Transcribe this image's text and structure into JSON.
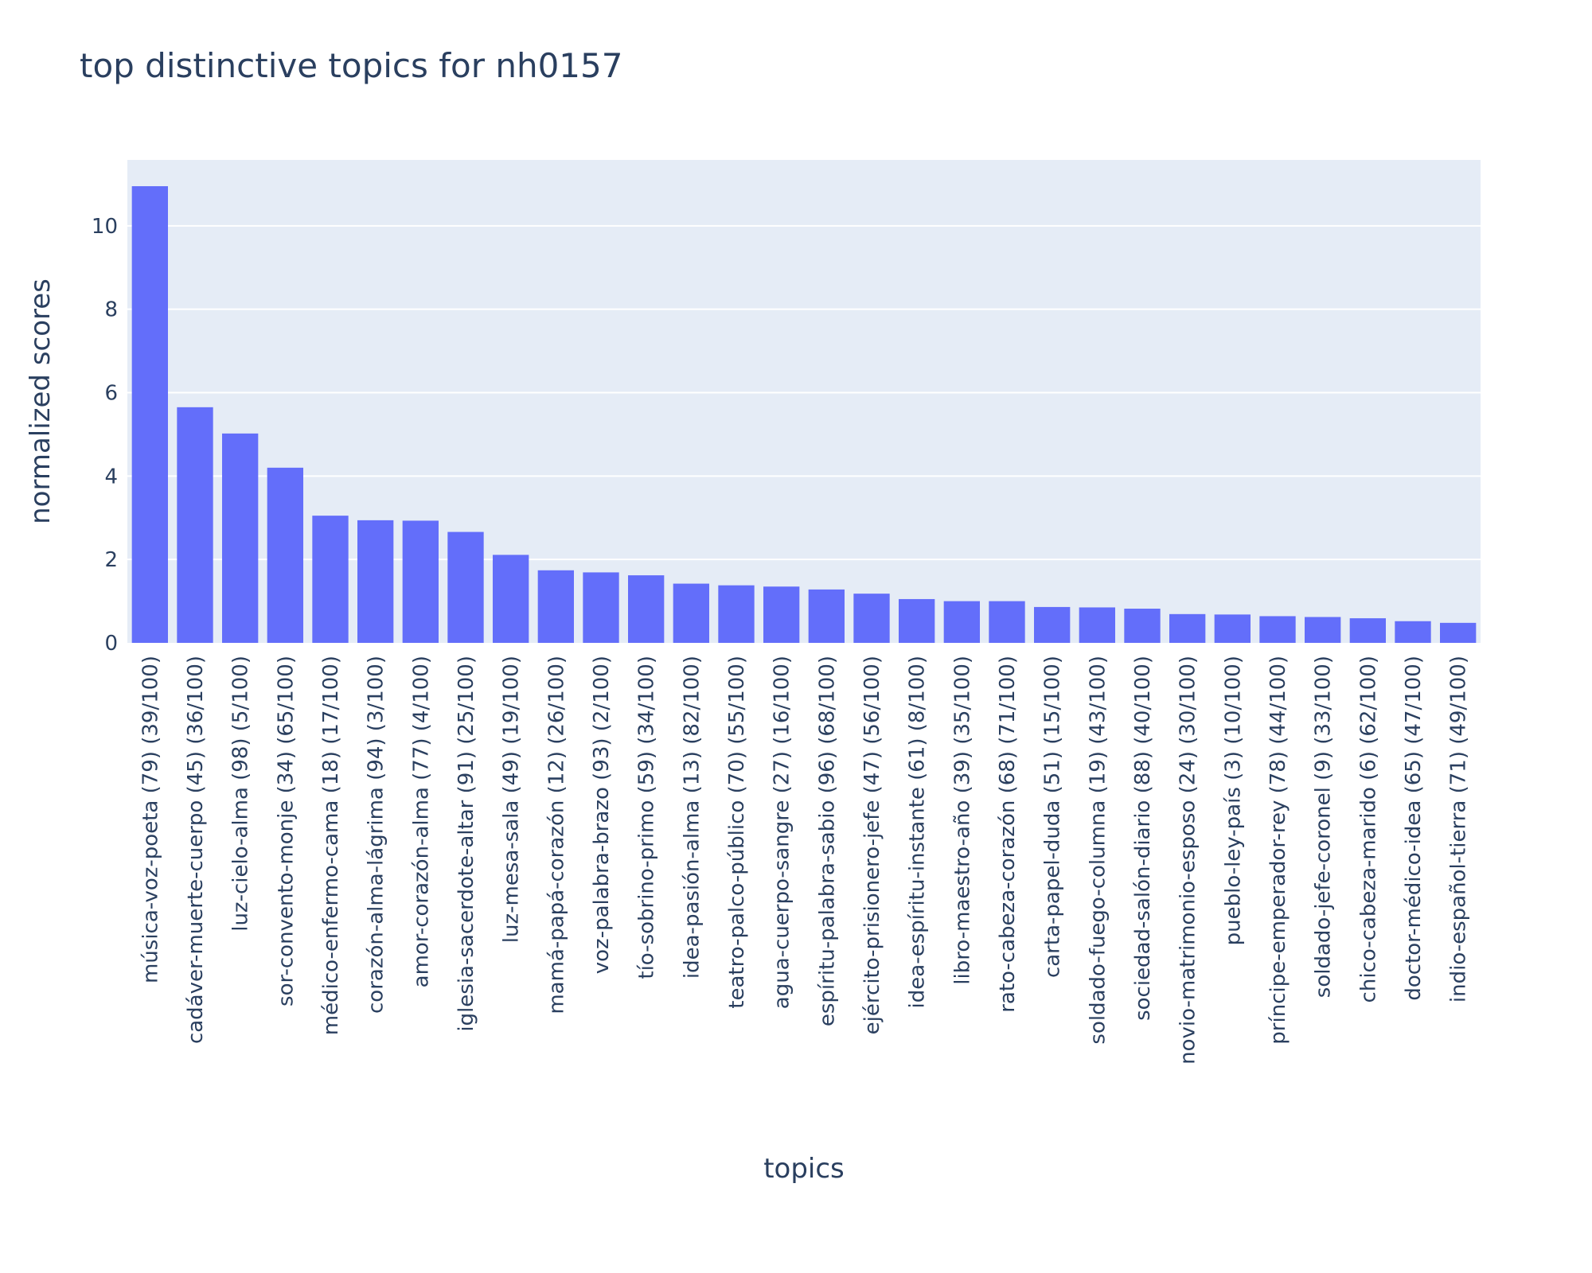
{
  "chart_data": {
    "type": "bar",
    "title": "top distinctive topics for nh0157",
    "xlabel": "topics",
    "ylabel": "normalized scores",
    "ylim": [
      0,
      11.58
    ],
    "yticks": [
      0,
      2,
      4,
      6,
      8,
      10
    ],
    "grid": true,
    "bar_color": "#636efa",
    "plot_bg": "#e5ecf6",
    "categories": [
      "música-voz-poeta (79) (39/100)",
      "cadáver-muerte-cuerpo (45) (36/100)",
      "luz-cielo-alma (98) (5/100)",
      "sor-convento-monje (34) (65/100)",
      "médico-enfermo-cama (18) (17/100)",
      "corazón-alma-lágrima (94) (3/100)",
      "amor-corazón-alma (77) (4/100)",
      "iglesia-sacerdote-altar (91) (25/100)",
      "luz-mesa-sala (49) (19/100)",
      "mamá-papá-corazón (12) (26/100)",
      "voz-palabra-brazo (93) (2/100)",
      "tío-sobrino-primo (59) (34/100)",
      "idea-pasión-alma (13) (82/100)",
      "teatro-palco-público (70) (55/100)",
      "agua-cuerpo-sangre (27) (16/100)",
      "espíritu-palabra-sabio (96) (68/100)",
      "ejército-prisionero-jefe (47) (56/100)",
      "idea-espíritu-instante (61) (8/100)",
      "libro-maestro-año (39) (35/100)",
      "rato-cabeza-corazón (68) (71/100)",
      "carta-papel-duda (51) (15/100)",
      "soldado-fuego-columna (19) (43/100)",
      "sociedad-salón-diario (88) (40/100)",
      "novio-matrimonio-esposo (24) (30/100)",
      "pueblo-ley-país (3) (10/100)",
      "príncipe-emperador-rey (78) (44/100)",
      "soldado-jefe-coronel (9) (33/100)",
      "chico-cabeza-marido (6) (62/100)",
      "doctor-médico-idea (65) (47/100)",
      "indio-español-tierra (71) (49/100)"
    ],
    "values": [
      10.95,
      5.65,
      5.02,
      4.2,
      3.05,
      2.94,
      2.93,
      2.66,
      2.11,
      1.74,
      1.69,
      1.62,
      1.42,
      1.38,
      1.35,
      1.28,
      1.18,
      1.05,
      1.0,
      1.0,
      0.86,
      0.85,
      0.82,
      0.69,
      0.68,
      0.64,
      0.62,
      0.59,
      0.52,
      0.48
    ]
  }
}
